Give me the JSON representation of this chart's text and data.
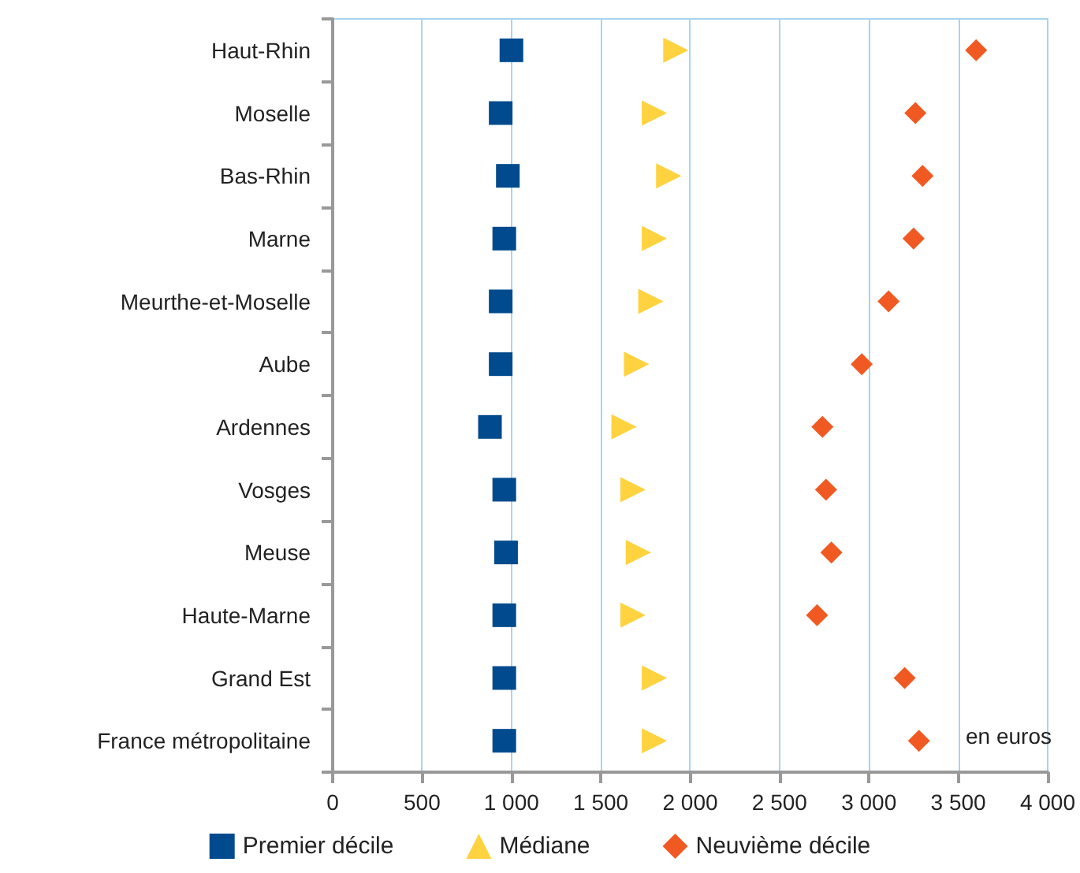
{
  "chart_data": {
    "type": "scatter",
    "orientation": "horizontal",
    "categories": [
      "Haut-Rhin",
      "Moselle",
      "Bas-Rhin",
      "Marne",
      "Meurthe-et-Moselle",
      "Aube",
      "Ardennes",
      "Vosges",
      "Meuse",
      "Haute-Marne",
      "Grand Est",
      "France métropolitaine"
    ],
    "series": [
      {
        "name": "Premier décile",
        "color": "#004a8d",
        "marker": "square",
        "values": [
          1000,
          940,
          980,
          960,
          940,
          940,
          880,
          960,
          970,
          960,
          960,
          960
        ]
      },
      {
        "name": "Médiane",
        "color": "#ffd23f",
        "marker": "triangle",
        "values": [
          1920,
          1800,
          1880,
          1800,
          1780,
          1700,
          1630,
          1680,
          1710,
          1680,
          1800,
          1800
        ]
      },
      {
        "name": "Neuvième décile",
        "color": "#f05a22",
        "marker": "diamond",
        "values": [
          3600,
          3260,
          3300,
          3250,
          3110,
          2960,
          2740,
          2760,
          2790,
          2710,
          3200,
          3280
        ]
      }
    ],
    "xlim": [
      0,
      4000
    ],
    "xticks": [
      0,
      500,
      {
        "value": 1000,
        "label": "1 000"
      },
      {
        "value": 1500,
        "label": "1 500"
      },
      {
        "value": 2000,
        "label": "2 000"
      },
      {
        "value": 2500,
        "label": "2 500"
      },
      {
        "value": 3000,
        "label": "3 000"
      },
      {
        "value": 3500,
        "label": "3 500"
      },
      {
        "value": 4000,
        "label": "4 000"
      }
    ],
    "grid": "x",
    "legend": "bottom",
    "annotations": [
      "en euros"
    ]
  }
}
